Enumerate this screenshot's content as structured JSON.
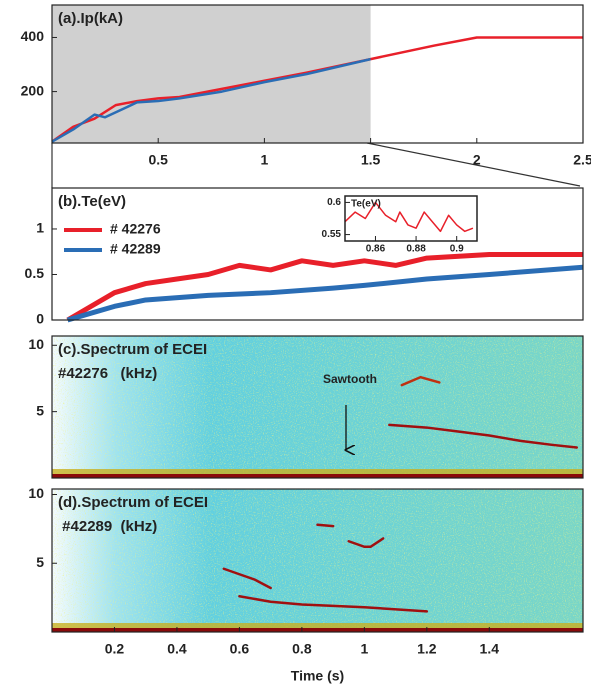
{
  "chart_data": [
    {
      "type": "line",
      "title": "(a).Ip(kA)",
      "xlim": [
        0,
        2.5
      ],
      "xticks": [
        0.5,
        1,
        1.5,
        2,
        2.5
      ],
      "ylim": [
        10,
        520
      ],
      "yticks": [
        200,
        400
      ],
      "highlight_xrange": [
        0,
        1.5
      ],
      "series": [
        {
          "color": "#e8202a",
          "x": [
            0,
            0.1,
            0.2,
            0.3,
            0.4,
            0.5,
            0.6,
            0.8,
            1.0,
            1.2,
            1.5,
            1.8,
            2.0,
            2.5
          ],
          "values": [
            15,
            70,
            100,
            150,
            165,
            175,
            180,
            210,
            240,
            270,
            320,
            370,
            400,
            400
          ]
        },
        {
          "color": "#2a6db5",
          "x": [
            0,
            0.1,
            0.2,
            0.25,
            0.4,
            0.5,
            0.6,
            0.8,
            1.0,
            1.2,
            1.5
          ],
          "values": [
            15,
            60,
            115,
            105,
            160,
            165,
            175,
            200,
            235,
            265,
            320
          ]
        }
      ]
    },
    {
      "type": "line",
      "title": "(b).Te(eV)",
      "xlim": [
        0,
        1.7
      ],
      "ylim": [
        0,
        1.45
      ],
      "yticks": [
        0,
        0.5,
        1
      ],
      "legend": "upper left",
      "series": [
        {
          "name": "# 42276",
          "color": "#e8202a",
          "x": [
            0.05,
            0.1,
            0.2,
            0.3,
            0.4,
            0.5,
            0.6,
            0.7,
            0.8,
            0.9,
            1.0,
            1.1,
            1.2,
            1.4,
            1.7
          ],
          "values": [
            0,
            0.1,
            0.3,
            0.4,
            0.45,
            0.5,
            0.6,
            0.55,
            0.65,
            0.6,
            0.65,
            0.6,
            0.68,
            0.72,
            0.72
          ]
        },
        {
          "name": "# 42289",
          "color": "#2a6db5",
          "x": [
            0.05,
            0.1,
            0.2,
            0.3,
            0.5,
            0.7,
            0.9,
            1.0,
            1.2,
            1.4,
            1.7
          ],
          "values": [
            0,
            0.05,
            0.15,
            0.22,
            0.27,
            0.3,
            0.35,
            0.38,
            0.45,
            0.5,
            0.58
          ]
        }
      ]
    },
    {
      "type": "line",
      "title": "Te(eV)",
      "xlim": [
        0.845,
        0.91
      ],
      "xticks": [
        0.86,
        0.88,
        0.9
      ],
      "ylim": [
        0.54,
        0.61
      ],
      "yticks": [
        0.55,
        0.6
      ],
      "series": [
        {
          "color": "#e8202a",
          "x": [
            0.845,
            0.85,
            0.855,
            0.86,
            0.865,
            0.87,
            0.872,
            0.876,
            0.88,
            0.884,
            0.888,
            0.892,
            0.896,
            0.9,
            0.904,
            0.908
          ],
          "values": [
            0.57,
            0.585,
            0.575,
            0.6,
            0.58,
            0.57,
            0.585,
            0.565,
            0.56,
            0.585,
            0.57,
            0.555,
            0.58,
            0.565,
            0.555,
            0.56
          ]
        }
      ]
    },
    {
      "type": "spectrogram",
      "title": "(c).Spectrum of ECEI",
      "subtitle": "#42276   (kHz)",
      "annotation": "Sawtooth",
      "xlim": [
        0,
        1.7
      ],
      "ylim": [
        0,
        10.7
      ],
      "yticks": [
        5,
        10
      ],
      "ridges": [
        {
          "color": "#a01010",
          "x": [
            1.08,
            1.2,
            1.3,
            1.4,
            1.5,
            1.6,
            1.68
          ],
          "values": [
            4,
            3.8,
            3.5,
            3.2,
            2.8,
            2.5,
            2.3
          ]
        },
        {
          "color": "#c03010",
          "x": [
            1.12,
            1.18,
            1.24
          ],
          "values": [
            7,
            7.6,
            7.2
          ]
        }
      ]
    },
    {
      "type": "spectrogram",
      "title": "(d).Spectrum of ECEI",
      "subtitle": " #42289  (kHz)",
      "xlabel": "Time (s)",
      "xlim": [
        0,
        1.7
      ],
      "xticks": [
        0.2,
        0.4,
        0.6,
        0.8,
        1,
        1.2,
        1.4
      ],
      "ylim": [
        0,
        10.4
      ],
      "yticks": [
        5,
        10
      ],
      "ridges": [
        {
          "color": "#a01010",
          "x": [
            0.85,
            0.9
          ],
          "values": [
            7.8,
            7.7
          ]
        },
        {
          "color": "#a01010",
          "x": [
            0.95,
            1.0,
            1.02,
            1.06
          ],
          "values": [
            6.6,
            6.2,
            6.2,
            6.8
          ]
        },
        {
          "color": "#a01010",
          "x": [
            0.55,
            0.6,
            0.65,
            0.7
          ],
          "values": [
            4.6,
            4.2,
            3.8,
            3.2
          ]
        },
        {
          "color": "#a01010",
          "x": [
            0.6,
            0.7,
            0.8,
            1.0,
            1.2
          ],
          "values": [
            2.6,
            2.2,
            2.0,
            1.8,
            1.5
          ]
        }
      ]
    }
  ]
}
